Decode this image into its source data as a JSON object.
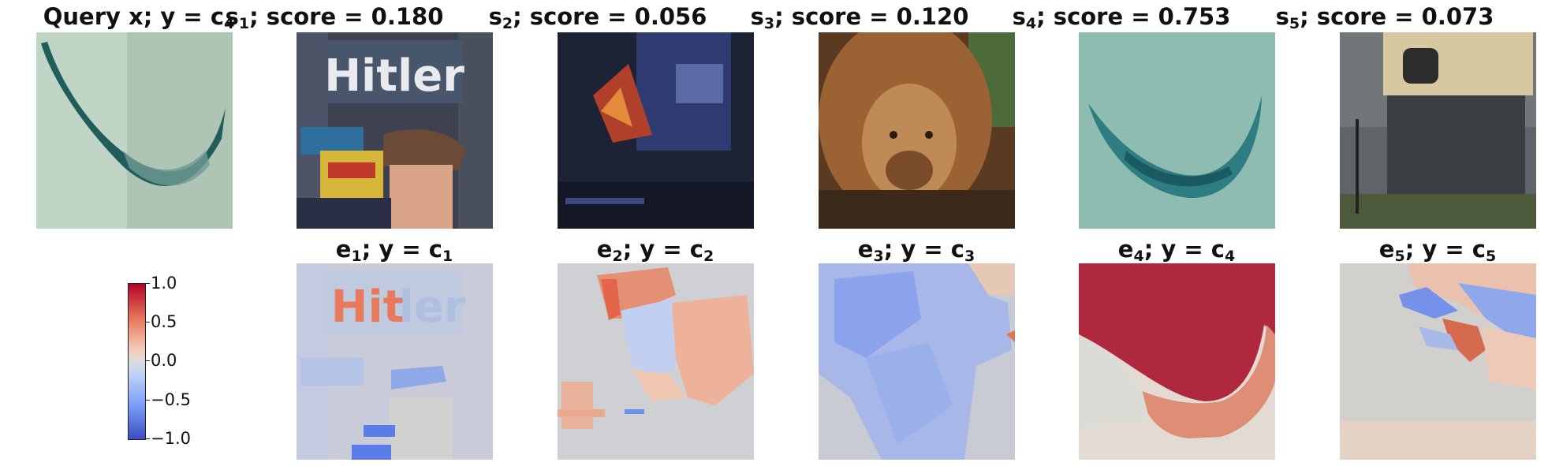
{
  "row1": [
    {
      "main": "Query x; y = c",
      "sub": "4",
      "after": ""
    },
    {
      "main": "s",
      "sub": "1",
      "after": "; score = 0.180"
    },
    {
      "main": "s",
      "sub": "2",
      "after": "; score = 0.056"
    },
    {
      "main": "s",
      "sub": "3",
      "after": "; score = 0.120"
    },
    {
      "main": "s",
      "sub": "4",
      "after": "; score = 0.753"
    },
    {
      "main": "s",
      "sub": "5",
      "after": "; score = 0.073"
    }
  ],
  "row2": [
    {
      "main": "e",
      "sub": "1",
      "mid": "; y = c",
      "sub2": "1"
    },
    {
      "main": "e",
      "sub": "2",
      "mid": "; y = c",
      "sub2": "2"
    },
    {
      "main": "e",
      "sub": "3",
      "mid": "; y = c",
      "sub2": "3"
    },
    {
      "main": "e",
      "sub": "4",
      "mid": "; y = c",
      "sub2": "4"
    },
    {
      "main": "e",
      "sub": "5",
      "mid": "; y = c",
      "sub2": "5"
    }
  ],
  "image_texts": {
    "hitler_cover": "Hitler",
    "hitler_overlay_red": "Hit",
    "hitler_overlay_blue": "ler"
  },
  "colorbar": {
    "colormap": "coolwarm",
    "range": [
      -1.0,
      1.0
    ],
    "ticks": [
      "1.0",
      "0.5",
      "0.0",
      "−0.5",
      "−1.0"
    ],
    "colors": {
      "max": "#b40426",
      "zero": "#dddcdc",
      "min": "#3b4cc0"
    }
  }
}
